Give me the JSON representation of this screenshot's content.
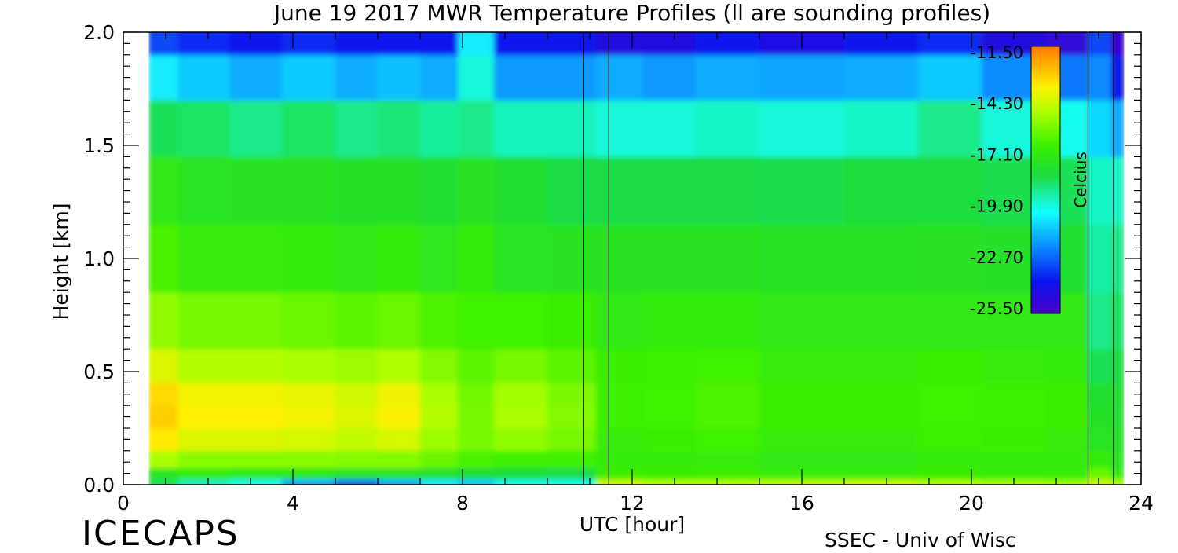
{
  "chart_data": {
    "type": "heatmap",
    "title": "June 19 2017 MWR Temperature Profiles (ll are sounding profiles)",
    "xlabel": "UTC [hour]",
    "ylabel": "Height [km]",
    "xlim": [
      0,
      24
    ],
    "ylim": [
      0.0,
      2.0
    ],
    "x_ticks": [
      "0",
      "4",
      "8",
      "12",
      "16",
      "20",
      "24"
    ],
    "y_ticks": [
      "0.0",
      "0.5",
      "1.0",
      "1.5",
      "2.0"
    ],
    "colorbar": {
      "label": "Celcius",
      "ticks": [
        "-11.50",
        "-14.30",
        "-17.10",
        "-19.90",
        "-22.70",
        "-25.50"
      ],
      "range": [
        -25.5,
        -11.5
      ]
    },
    "data_coverage_hours": [
      0.6,
      23.6
    ],
    "sounding_profiles_utc": [
      10.85,
      11.45,
      22.75,
      23.35
    ],
    "heights_km": [
      0.0,
      0.05,
      0.1,
      0.2,
      0.3,
      0.4,
      0.5,
      0.7,
      1.0,
      1.3,
      1.6,
      1.8,
      2.0
    ],
    "profiles": [
      {
        "utc": 0.6,
        "temps": [
          -18.5,
          -17.5,
          -15.0,
          -13.5,
          -13.0,
          -13.2,
          -14.2,
          -15.4,
          -16.5,
          -17.3,
          -18.5,
          -20.5,
          -23.0
        ]
      },
      {
        "utc": 2.0,
        "temps": [
          -19.5,
          -17.0,
          -15.5,
          -14.2,
          -13.6,
          -13.8,
          -14.8,
          -15.8,
          -16.9,
          -17.5,
          -18.6,
          -21.0,
          -23.5
        ]
      },
      {
        "utc": 3.0,
        "temps": [
          -20.0,
          -17.3,
          -15.5,
          -14.2,
          -13.6,
          -13.8,
          -14.8,
          -15.8,
          -16.9,
          -17.6,
          -19.0,
          -21.5,
          -24.0
        ]
      },
      {
        "utc": 4.5,
        "temps": [
          -21.5,
          -17.3,
          -15.5,
          -14.3,
          -13.8,
          -14.0,
          -15.0,
          -16.0,
          -17.0,
          -17.6,
          -18.6,
          -21.0,
          -23.5
        ]
      },
      {
        "utc": 5.5,
        "temps": [
          -22.5,
          -17.5,
          -15.6,
          -14.6,
          -14.2,
          -14.4,
          -15.2,
          -16.2,
          -17.2,
          -17.8,
          -19.0,
          -21.5,
          -24.0
        ]
      },
      {
        "utc": 6.5,
        "temps": [
          -21.5,
          -17.5,
          -15.6,
          -14.3,
          -13.7,
          -13.9,
          -14.9,
          -16.0,
          -17.1,
          -17.8,
          -18.8,
          -21.2,
          -23.8
        ]
      },
      {
        "utc": 7.5,
        "temps": [
          -20.5,
          -17.8,
          -16.0,
          -15.2,
          -14.8,
          -15.0,
          -15.6,
          -16.4,
          -17.4,
          -18.0,
          -19.2,
          -21.5,
          -24.0
        ]
      },
      {
        "utc": 8.3,
        "temps": [
          -21.0,
          -18.0,
          -16.5,
          -15.8,
          -15.8,
          -15.9,
          -16.2,
          -16.6,
          -17.0,
          -17.6,
          -19.0,
          -19.8,
          -20.5
        ]
      },
      {
        "utc": 9.2,
        "temps": [
          -20.0,
          -18.2,
          -16.6,
          -15.4,
          -15.0,
          -15.1,
          -15.8,
          -16.6,
          -17.5,
          -18.0,
          -19.5,
          -21.8,
          -24.0
        ]
      },
      {
        "utc": 10.8,
        "temps": [
          -20.0,
          -18.3,
          -16.6,
          -15.8,
          -15.6,
          -15.7,
          -16.2,
          -16.8,
          -17.6,
          -18.3,
          -19.5,
          -21.8,
          -24.0
        ]
      },
      {
        "utc": 11.5,
        "temps": [
          -14.5,
          -16.8,
          -17.1,
          -16.9,
          -16.7,
          -16.7,
          -16.8,
          -17.2,
          -17.6,
          -18.3,
          -19.8,
          -21.5,
          -24.5
        ]
      },
      {
        "utc": 13.0,
        "temps": [
          -15.0,
          -16.8,
          -17.0,
          -16.8,
          -16.6,
          -16.6,
          -16.7,
          -17.1,
          -17.6,
          -18.3,
          -19.8,
          -21.8,
          -24.5
        ]
      },
      {
        "utc": 14.0,
        "temps": [
          -15.0,
          -16.8,
          -16.9,
          -16.6,
          -16.4,
          -16.4,
          -16.6,
          -17.0,
          -17.6,
          -18.3,
          -19.6,
          -21.5,
          -24.0
        ]
      },
      {
        "utc": 16.0,
        "temps": [
          -14.8,
          -16.9,
          -17.2,
          -16.9,
          -16.8,
          -16.8,
          -16.9,
          -17.2,
          -17.7,
          -18.4,
          -19.8,
          -21.6,
          -24.3
        ]
      },
      {
        "utc": 18.0,
        "temps": [
          -14.6,
          -17.0,
          -17.2,
          -16.9,
          -16.8,
          -16.8,
          -16.9,
          -17.2,
          -17.7,
          -18.2,
          -19.6,
          -21.5,
          -24.0
        ]
      },
      {
        "utc": 19.5,
        "temps": [
          -15.0,
          -16.8,
          -17.0,
          -16.7,
          -16.6,
          -16.6,
          -16.8,
          -17.2,
          -17.6,
          -18.2,
          -19.0,
          -21.0,
          -23.5
        ]
      },
      {
        "utc": 21.0,
        "temps": [
          -15.2,
          -16.9,
          -17.1,
          -16.8,
          -16.7,
          -16.7,
          -16.9,
          -17.3,
          -17.8,
          -18.4,
          -19.8,
          -22.0,
          -24.5
        ]
      },
      {
        "utc": 22.5,
        "temps": [
          -15.3,
          -16.9,
          -17.1,
          -16.9,
          -16.8,
          -16.8,
          -17.0,
          -17.3,
          -17.9,
          -18.5,
          -20.0,
          -22.3,
          -24.8
        ]
      },
      {
        "utc": 23.0,
        "temps": [
          -14.5,
          -16.0,
          -17.0,
          -17.5,
          -17.8,
          -18.0,
          -18.5,
          -19.0,
          -19.3,
          -19.6,
          -20.8,
          -22.0,
          -23.0
        ]
      },
      {
        "utc": 23.6,
        "temps": [
          -15.0,
          -17.0,
          -17.6,
          -17.8,
          -17.9,
          -18.0,
          -18.3,
          -18.6,
          -19.0,
          -19.6,
          -21.5,
          -24.0,
          -25.0
        ]
      }
    ]
  },
  "footer": {
    "left_label": "ICECAPS",
    "right_label": "SSEC - Univ of Wisc"
  }
}
